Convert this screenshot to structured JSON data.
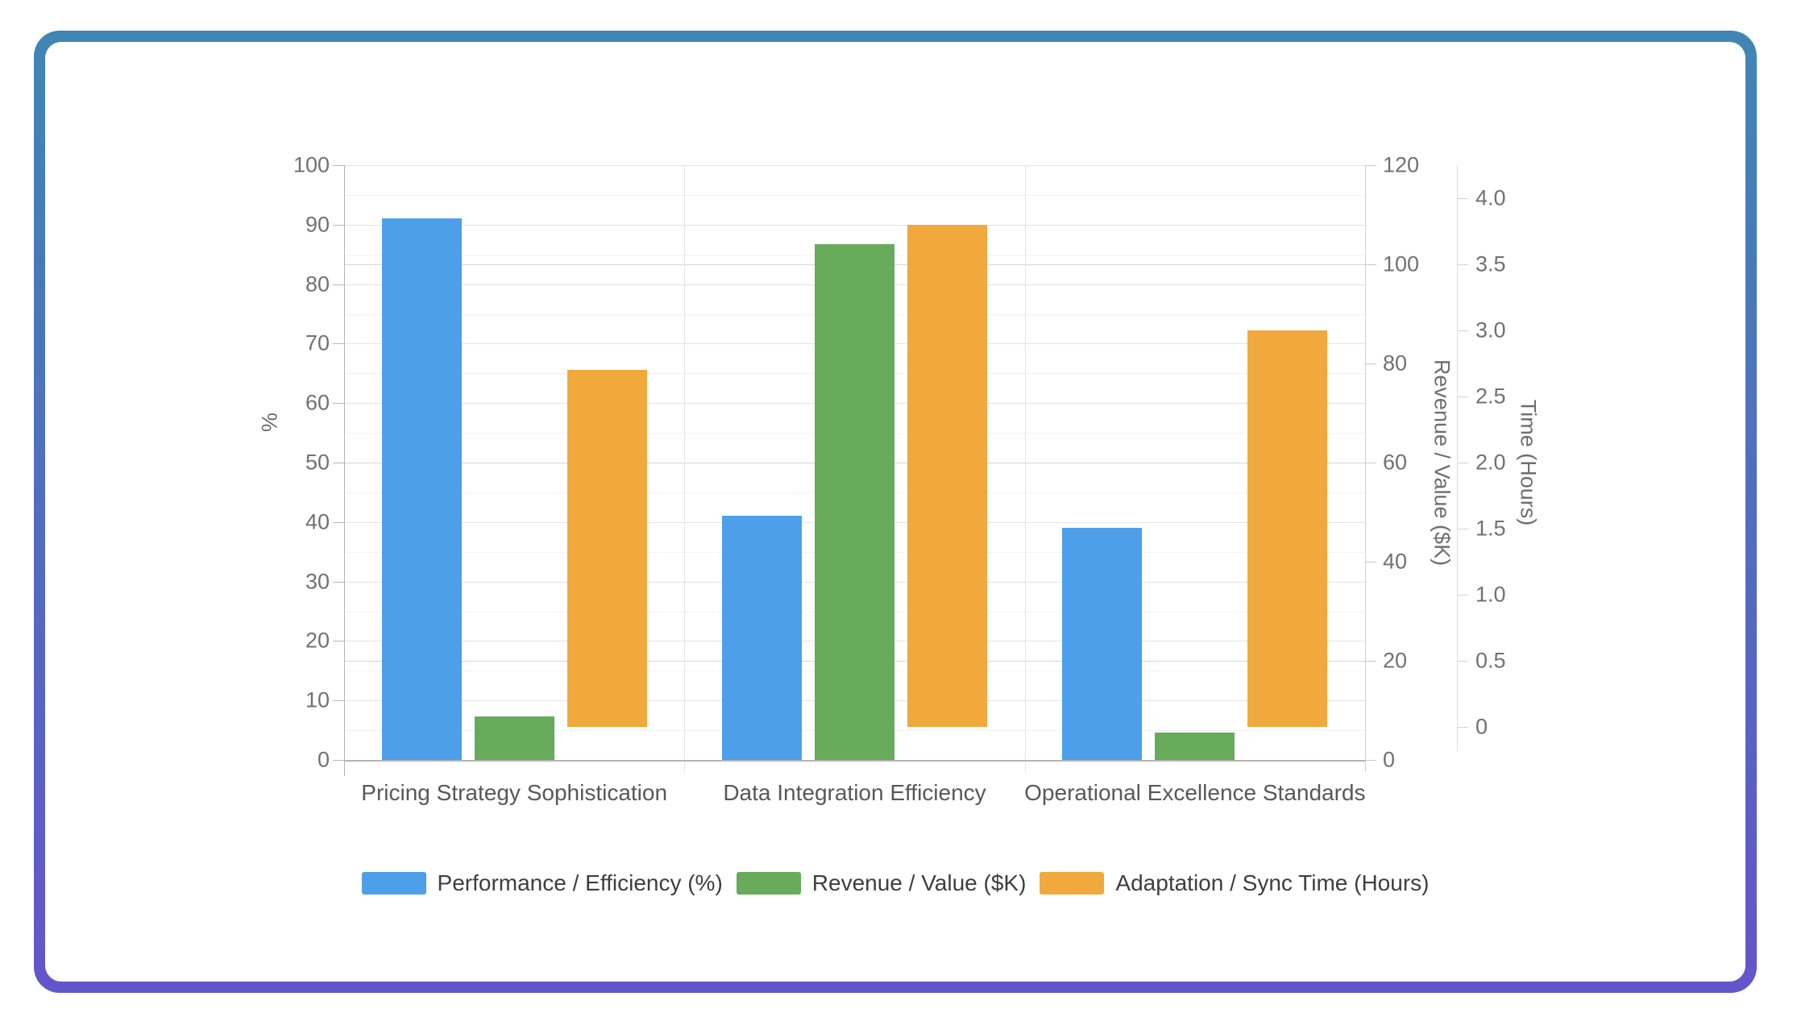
{
  "frame": {
    "gradient_top": "#4086B4",
    "gradient_bottom": "#6355CA",
    "background": "#ffffff"
  },
  "chart_data": {
    "type": "bar",
    "title": "",
    "categories": [
      "Pricing Strategy Sophistication",
      "Data Integration Efficiency",
      "Operational Excellence Standards"
    ],
    "series": [
      {
        "name": "Performance / Efficiency (%)",
        "axis": "percent",
        "color": "#4D9FEA",
        "values": [
          91,
          41,
          39
        ]
      },
      {
        "name": "Revenue / Value ($K)",
        "axis": "revenue",
        "color": "#67AB5B",
        "values": [
          8.8,
          104,
          5.5
        ]
      },
      {
        "name": "Adaptation / Sync Time (Hours)",
        "axis": "time",
        "color": "#F1A93D",
        "values": [
          2.7,
          3.8,
          3.0
        ]
      }
    ],
    "axes": {
      "percent": {
        "title": "%",
        "min": 0,
        "max": 100,
        "tick_min": 0,
        "tick_max": 100,
        "tick_step": 10,
        "side": "left"
      },
      "revenue": {
        "title": "Revenue / Value ($K)",
        "min": 0,
        "max": 120,
        "tick_min": 0,
        "tick_max": 120,
        "tick_step": 20,
        "side": "right"
      },
      "time": {
        "title": "Time (Hours)",
        "min": -0.25,
        "max": 4.25,
        "tick_min": 0,
        "tick_max": 4,
        "tick_step": 0.5,
        "side": "right"
      }
    },
    "grid": true,
    "legend_position": "bottom"
  }
}
